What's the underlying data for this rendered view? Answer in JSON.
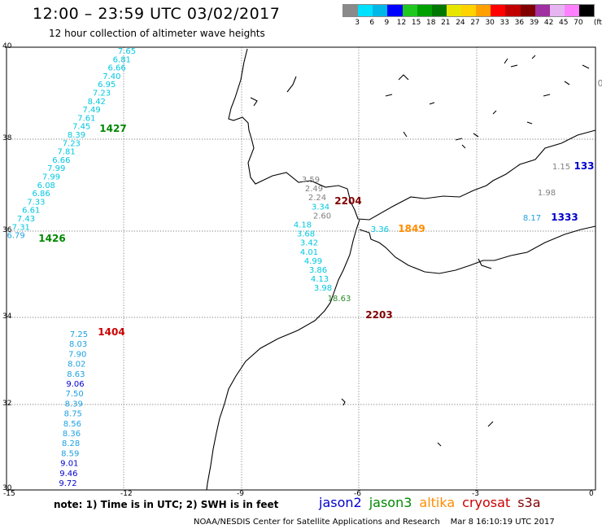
{
  "header": {
    "title": "12:00 – 23:59 UTC 03/02/2017",
    "subtitle": "12 hour collection of altimeter wave heights"
  },
  "legend": {
    "colors": [
      "#8a8a8a",
      "#00e0ff",
      "#00b7e8",
      "#0000ff",
      "#1ec81e",
      "#00a000",
      "#007800",
      "#e6e600",
      "#ffd200",
      "#ffa000",
      "#ff0000",
      "#c00000",
      "#800000",
      "#a030a0",
      "#e6b4f0",
      "#ff80ff",
      "#000000"
    ],
    "ticks": [
      "3",
      "6",
      "9",
      "12",
      "15",
      "18",
      "21",
      "24",
      "27",
      "30",
      "33",
      "36",
      "39",
      "42",
      "45",
      "70"
    ],
    "unit": "(ft)"
  },
  "axes": {
    "lat_labels": [
      "40",
      "38",
      "36",
      "34",
      "32",
      "30"
    ],
    "lon_labels": [
      "-15",
      "-12",
      "-9",
      "-6",
      "-3",
      "0"
    ]
  },
  "colors": {
    "jason2": "#0000cc",
    "jason3": "#008800",
    "altika": "#ff8c00",
    "cryosat": "#cc0000",
    "s3a": "#800000",
    "cyan": "#00c8e0",
    "lightblue": "#1ea0e0",
    "gray": "#808080",
    "green": "#2a8a2a"
  },
  "tracks": {
    "track_1427": {
      "values": [
        "7.65",
        "6.81",
        "6.66",
        "7.40",
        "6.95",
        "7.23",
        "8.42",
        "7.49",
        "7.61",
        "7.45",
        "8.39",
        "7.23",
        "7.81",
        "6.66",
        "7.99",
        "7.99",
        "6.08",
        "6.86",
        "7.33",
        "6.61",
        "7.43",
        "7.31",
        "6.79"
      ],
      "colors": [
        "cyan",
        "cyan",
        "cyan",
        "cyan",
        "cyan",
        "cyan",
        "cyan",
        "cyan",
        "cyan",
        "cyan",
        "cyan",
        "cyan",
        "cyan",
        "cyan",
        "cyan",
        "cyan",
        "cyan",
        "cyan",
        "cyan",
        "cyan",
        "cyan",
        "cyan",
        "lightblue"
      ]
    },
    "track_1404": {
      "values": [
        "7.25",
        "8.03",
        "7.90",
        "8.02",
        "8.63",
        "9.06",
        "7.50",
        "8.39",
        "8.75",
        "8.56",
        "8.36",
        "8.28",
        "8.59",
        "9.01",
        "9.46",
        "9.72"
      ],
      "colors": [
        "lightblue",
        "lightblue",
        "lightblue",
        "lightblue",
        "lightblue",
        "jason2",
        "lightblue",
        "lightblue",
        "lightblue",
        "lightblue",
        "lightblue",
        "lightblue",
        "lightblue",
        "jason2",
        "jason2",
        "jason2"
      ]
    },
    "track_2204": {
      "values": [
        "3.59",
        "2.49",
        "2.24",
        "3.34",
        "2.60",
        "4.18",
        "3.68",
        "3.42",
        "4.01",
        "4.99",
        "3.86",
        "4.13",
        "3.98",
        "18.63"
      ],
      "colors": [
        "gray",
        "gray",
        "gray",
        "cyan",
        "gray",
        "cyan",
        "cyan",
        "cyan",
        "cyan",
        "cyan",
        "cyan",
        "cyan",
        "cyan",
        "green"
      ]
    },
    "track_1849": {
      "values": [
        "3.36"
      ],
      "colors": [
        "cyan"
      ]
    },
    "track_1333": {
      "values": [
        "1.15",
        "1.98",
        "8.17"
      ],
      "colors": [
        "gray",
        "gray",
        "lightblue"
      ]
    }
  },
  "time_labels": [
    {
      "text": "1427",
      "color": "jason3"
    },
    {
      "text": "1426",
      "color": "jason3"
    },
    {
      "text": "1404",
      "color": "cryosat"
    },
    {
      "text": "2204",
      "color": "s3a"
    },
    {
      "text": "2203",
      "color": "s3a"
    },
    {
      "text": "1849",
      "color": "altika"
    },
    {
      "text": "1333",
      "color": "jason2"
    },
    {
      "text": "133",
      "color": "jason2"
    }
  ],
  "edge_value": {
    "text": "0",
    "color": "gray"
  },
  "note": "note: 1) Time is in UTC; 2) SWH is in feet",
  "missions": [
    {
      "name": "jason2",
      "color": "#0000cc"
    },
    {
      "name": "jason3",
      "color": "#008800"
    },
    {
      "name": "altika",
      "color": "#ff8c00"
    },
    {
      "name": "cryosat",
      "color": "#cc0000"
    },
    {
      "name": "s3a",
      "color": "#800000"
    }
  ],
  "footer": {
    "center": "NOAA/NESDIS Center for Satellite Applications and Research",
    "timestamp": "Mar  8 16:10:19 UTC 2017"
  }
}
